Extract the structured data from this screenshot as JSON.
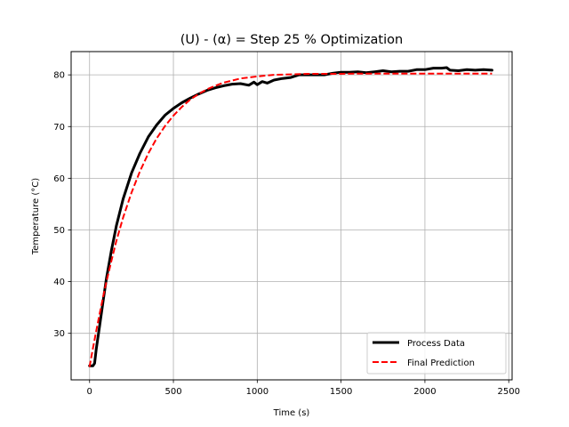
{
  "chart_data": {
    "type": "line",
    "title": "(U) - (α) = Step 25 % Optimization",
    "xlabel": "Time (s)",
    "ylabel": "Temperature (°C)",
    "xlim": [
      -110,
      2520
    ],
    "ylim": [
      21,
      84.5
    ],
    "xticks": [
      0,
      500,
      1000,
      1500,
      2000,
      2500
    ],
    "yticks": [
      30,
      40,
      50,
      60,
      70,
      80
    ],
    "grid": true,
    "legend_position": "bottom-right",
    "series": [
      {
        "name": "Process Data",
        "color": "#000000",
        "style": "solid",
        "x": [
          0,
          20,
          30,
          40,
          60,
          80,
          100,
          130,
          160,
          200,
          250,
          300,
          350,
          400,
          450,
          500,
          550,
          600,
          650,
          700,
          750,
          800,
          850,
          900,
          950,
          980,
          1000,
          1030,
          1060,
          1100,
          1150,
          1200,
          1250,
          1300,
          1350,
          1400,
          1450,
          1500,
          1550,
          1600,
          1650,
          1700,
          1750,
          1800,
          1850,
          1900,
          1950,
          2000,
          2050,
          2100,
          2130,
          2150,
          2200,
          2250,
          2300,
          2350,
          2400
        ],
        "y": [
          23.7,
          23.7,
          24.2,
          27.0,
          31.5,
          36.0,
          40.5,
          46.0,
          50.8,
          56.0,
          61.0,
          64.8,
          68.0,
          70.3,
          72.2,
          73.5,
          74.6,
          75.5,
          76.3,
          77.0,
          77.5,
          77.9,
          78.2,
          78.3,
          78.0,
          78.6,
          78.1,
          78.7,
          78.4,
          79.0,
          79.3,
          79.5,
          80.0,
          80.0,
          80.0,
          80.0,
          80.3,
          80.5,
          80.5,
          80.6,
          80.4,
          80.6,
          80.8,
          80.6,
          80.7,
          80.7,
          81.0,
          81.0,
          81.3,
          81.3,
          81.4,
          80.9,
          80.8,
          81.0,
          80.9,
          81.0,
          80.9
        ]
      },
      {
        "name": "Final Prediction",
        "color": "#ff0000",
        "style": "dashed",
        "x": [
          0,
          20,
          40,
          60,
          80,
          100,
          130,
          160,
          200,
          250,
          300,
          350,
          400,
          450,
          500,
          550,
          600,
          650,
          700,
          750,
          800,
          900,
          1000,
          1100,
          1200,
          1300,
          1400,
          1500,
          1600,
          1800,
          2000,
          2200,
          2400
        ],
        "y": [
          23.5,
          27.1,
          30.5,
          33.8,
          36.9,
          39.9,
          44.0,
          47.9,
          52.4,
          57.2,
          61.3,
          64.8,
          67.7,
          70.1,
          72.1,
          73.8,
          75.2,
          76.3,
          77.2,
          77.9,
          78.5,
          79.3,
          79.7,
          80.0,
          80.1,
          80.2,
          80.2,
          80.2,
          80.25,
          80.25,
          80.25,
          80.25,
          80.25
        ]
      }
    ]
  }
}
